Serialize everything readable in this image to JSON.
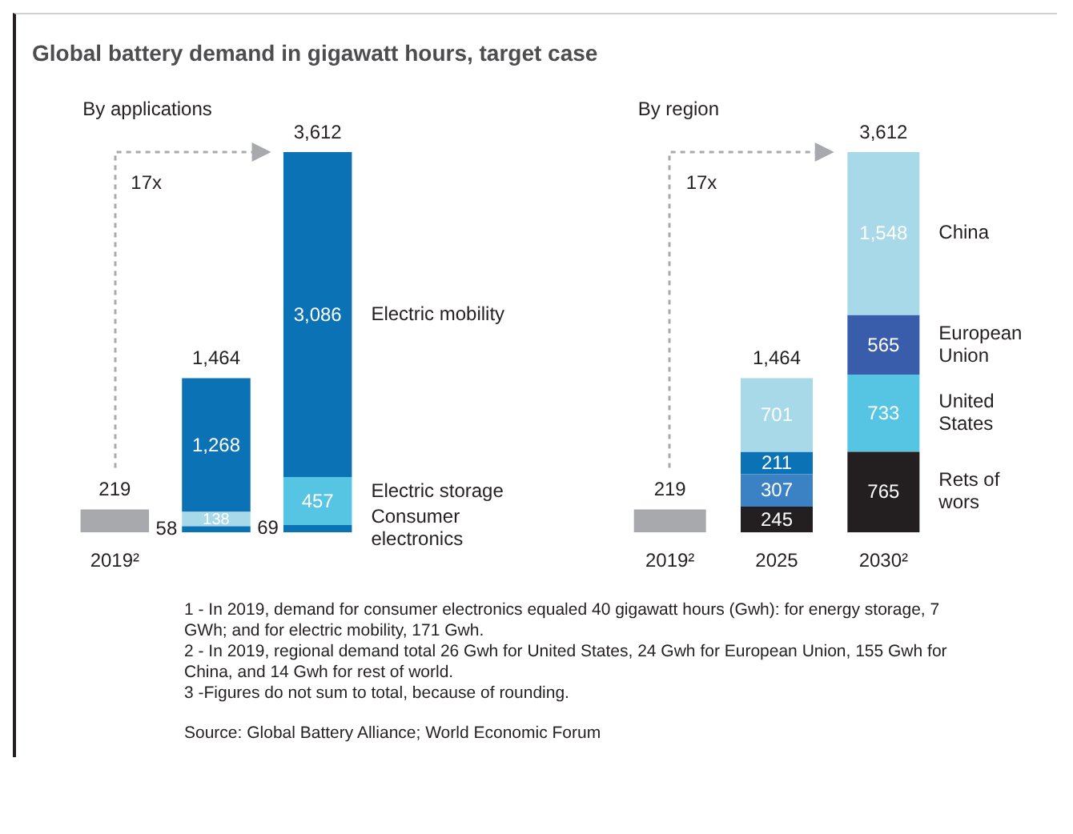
{
  "chart_data": [
    {
      "type": "bar",
      "title": "Global battery demand in gigawatt hours, target case",
      "stacked": true,
      "categories": [
        "2019²",
        null,
        null
      ],
      "series": [
        {
          "color": "#a7a9ac",
          "values": [
            219,
            null,
            null
          ]
        },
        {
          "name": "Consumer electronics",
          "color": "#0b72b5",
          "values": [
            null,
            58,
            69
          ],
          "value_labels": [
            null,
            "58",
            "69"
          ]
        },
        {
          "name": "Electric storage",
          "colors": [
            "#a8d9e8",
            "#a8d9e8",
            "#56c5e3"
          ],
          "values": [
            null,
            138,
            457
          ],
          "value_labels": [
            null,
            "138",
            "457"
          ]
        },
        {
          "name": "Electric mobility",
          "color": "#0b72b5",
          "values": [
            null,
            1268,
            3086
          ],
          "value_labels": [
            null,
            "1,268",
            "3,086"
          ]
        }
      ],
      "totals": [
        "219",
        "1,464",
        "3,612"
      ],
      "annotations": [
        "By applications",
        "17x"
      ]
    },
    {
      "type": "bar",
      "stacked": true,
      "categories": [
        "2019²",
        "2025",
        "2030²"
      ],
      "series": [
        {
          "color": "#a7a9ac",
          "values": [
            219,
            null,
            null
          ]
        },
        {
          "name": "Rets of wors",
          "color": "#231f20",
          "values": [
            null,
            245,
            765
          ],
          "value_labels": [
            null,
            "245",
            "765"
          ]
        },
        {
          "name": "United States",
          "colors": [
            "#3b82c4",
            "#3b82c4",
            "#56c5e3"
          ],
          "values": [
            null,
            307,
            733
          ],
          "value_labels": [
            null,
            "307",
            "733"
          ]
        },
        {
          "name": "European Union",
          "colors": [
            "#0b72b5",
            "#0b72b5",
            "#3a5dab"
          ],
          "values": [
            null,
            211,
            565
          ],
          "value_labels": [
            null,
            "211",
            "565"
          ]
        },
        {
          "name": "China",
          "color": "#a8d9e8",
          "values": [
            null,
            701,
            1548
          ],
          "value_labels": [
            null,
            "701",
            "1,548"
          ]
        }
      ],
      "totals": [
        "219",
        "1,464",
        "3,612"
      ],
      "annotations": [
        "By region",
        "17x",
        "1 - In 2019, demand for consumer electronics equaled 40 gigawatt hours (Gwh): for energy storage, 7 GWh; and for electric mobility, 171 Gwh.",
        "2 - In 2019, regional demand total 26 Gwh for United States, 24 Gwh for European Union, 155 Gwh for China, and 14 Gwh for rest of world.",
        "3 -Figures do not sum to total, because of rounding.",
        "Source: Global Battery Alliance; World Economic Forum"
      ]
    }
  ]
}
